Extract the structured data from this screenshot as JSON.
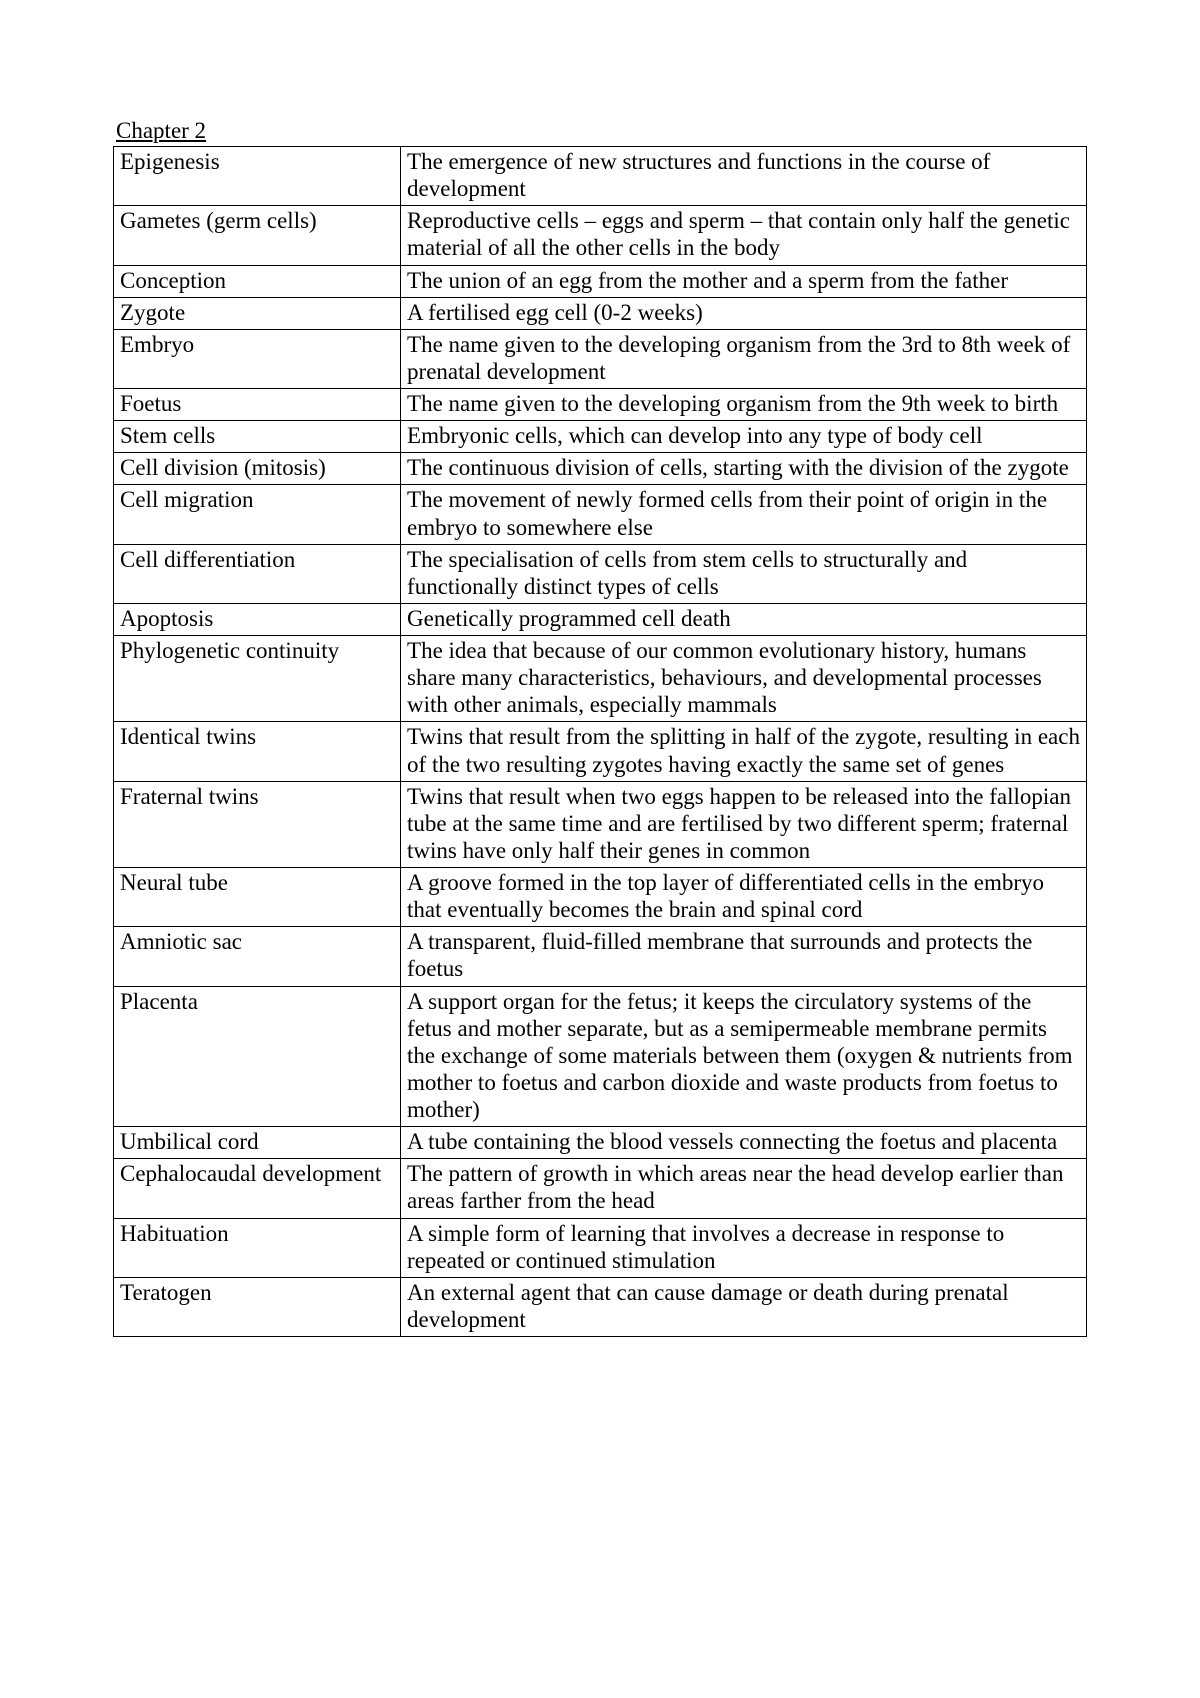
{
  "title": "Chapter 2",
  "table": {
    "rows": [
      {
        "term": "Epigenesis",
        "definition": "The emergence of new structures and functions in the course of development"
      },
      {
        "term": "Gametes (germ cells)",
        "definition": "Reproductive cells – eggs and sperm – that contain only half the genetic material of all the other cells in the body"
      },
      {
        "term": "Conception",
        "definition": "The union of an egg from the mother and a sperm from the father"
      },
      {
        "term": "Zygote",
        "definition": "A fertilised egg cell (0-2 weeks)"
      },
      {
        "term": "Embryo",
        "definition": "The name given to the developing organism from the 3rd to 8th week of prenatal development"
      },
      {
        "term": "Foetus",
        "definition": "The name given to the developing organism from the 9th week to birth"
      },
      {
        "term": "Stem cells",
        "definition": "Embryonic cells, which can develop into any type of body cell"
      },
      {
        "term": "Cell division (mitosis)",
        "definition": "The continuous division of cells, starting with the division of the zygote"
      },
      {
        "term": "Cell migration",
        "definition": "The movement of newly formed cells from their point of origin in the embryo to somewhere else"
      },
      {
        "term": "Cell differentiation",
        "definition": "The specialisation of cells from stem cells to structurally and functionally distinct types of cells"
      },
      {
        "term": "Apoptosis",
        "definition": "Genetically programmed cell death"
      },
      {
        "term": "Phylogenetic continuity",
        "definition": "The idea that because of our common evolutionary history, humans share many characteristics, behaviours, and developmental processes with other animals, especially mammals"
      },
      {
        "term": "Identical twins",
        "definition": "Twins that result from the splitting in half of the zygote, resulting in each of the two resulting zygotes having exactly the same set of genes"
      },
      {
        "term": "Fraternal twins",
        "definition": "Twins that result when two eggs happen to be released into the fallopian tube at the same time and are fertilised by two different sperm; fraternal twins have only half their genes in common"
      },
      {
        "term": "Neural tube",
        "definition": "A groove formed in the top layer of differentiated cells in the embryo that eventually becomes the brain and spinal cord"
      },
      {
        "term": "Amniotic sac",
        "definition": "A transparent, fluid-filled membrane that surrounds and protects the foetus"
      },
      {
        "term": "Placenta",
        "definition": "A support organ for the fetus; it keeps the circulatory systems of the fetus and mother separate, but as a semipermeable membrane permits the exchange of some materials between them (oxygen & nutrients from mother to foetus and carbon dioxide and waste products from foetus to mother)"
      },
      {
        "term": "Umbilical cord",
        "definition": "A tube containing the blood vessels connecting the foetus and placenta"
      },
      {
        "term": "Cephalocaudal development",
        "definition": "The pattern of growth in which areas near the head develop earlier than areas farther from the head"
      },
      {
        "term": "Habituation",
        "definition": "A simple form of learning that involves a decrease in response to repeated or continued stimulation"
      },
      {
        "term": "Teratogen",
        "definition": "An external agent that can cause damage or death during prenatal development"
      }
    ]
  }
}
